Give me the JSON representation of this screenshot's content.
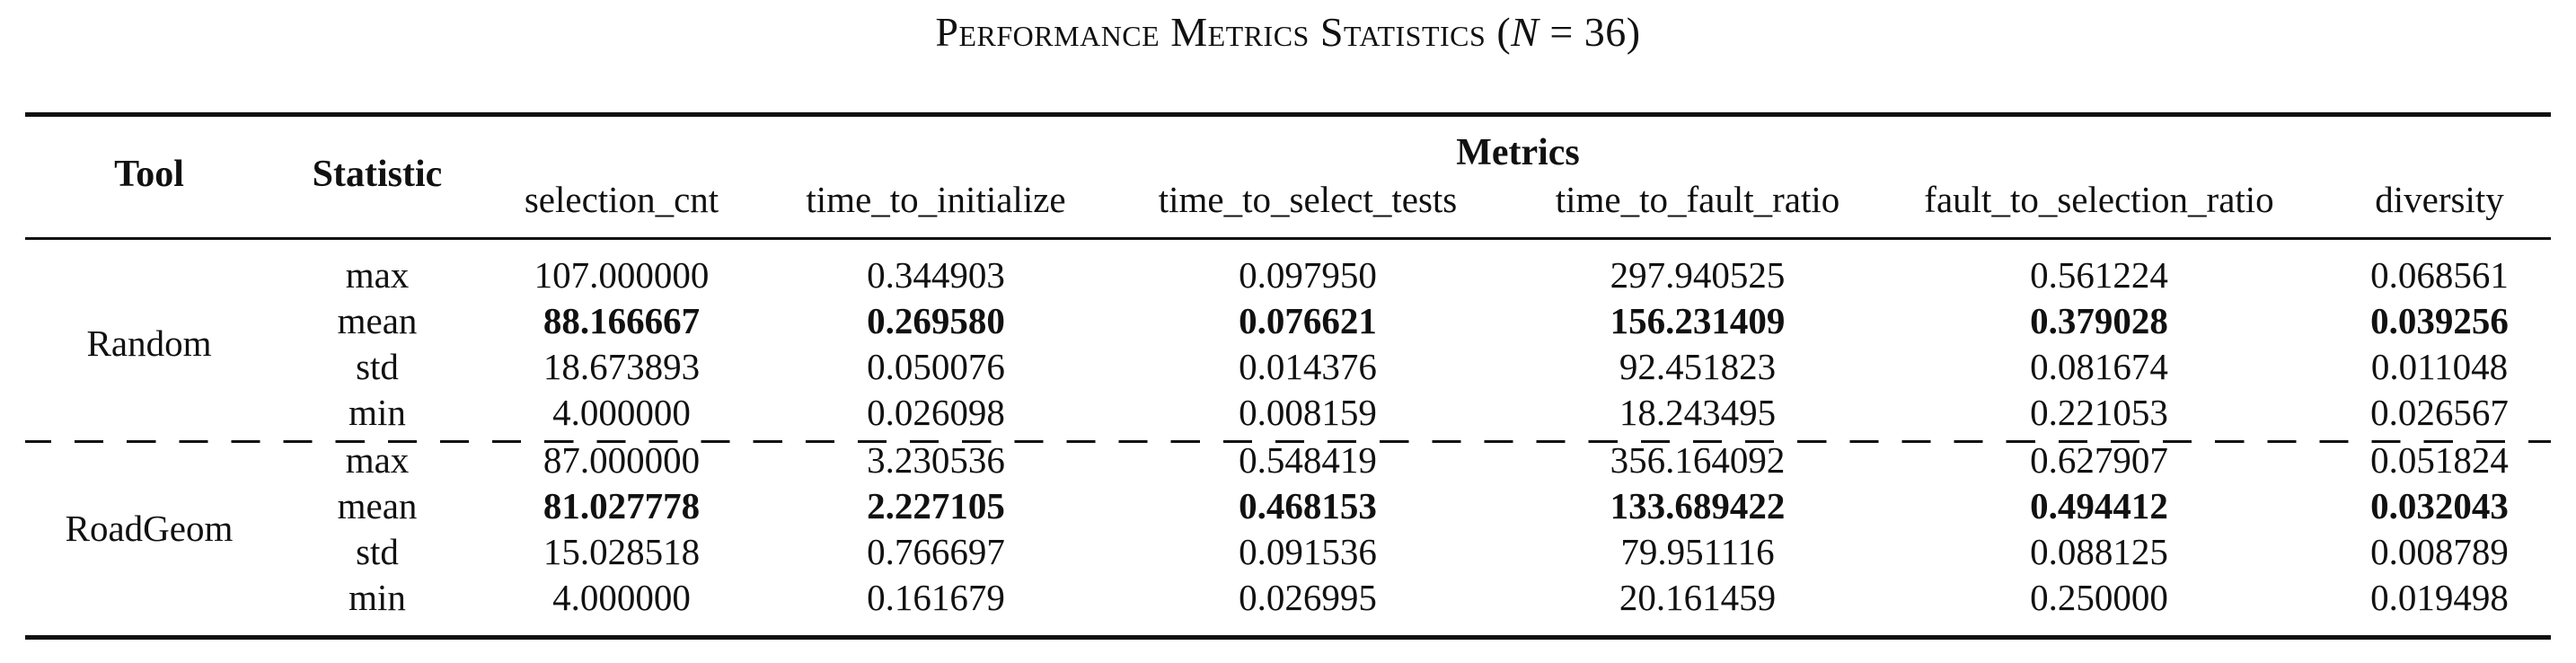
{
  "caption": {
    "text": "Performance Metrics Statistics",
    "math_open": "(",
    "math_var": "N",
    "math_rest": " = 36)"
  },
  "header": {
    "tool": "Tool",
    "statistic": "Statistic",
    "metrics_group": "Metrics",
    "columns": [
      "selection_cnt",
      "time_to_initialize",
      "time_to_select_tests",
      "time_to_fault_ratio",
      "fault_to_selection_ratio",
      "diversity"
    ]
  },
  "groups": [
    {
      "tool": "Random",
      "rows": [
        {
          "stat": "max",
          "values": [
            "107.000000",
            "0.344903",
            "0.097950",
            "297.940525",
            "0.561224",
            "0.068561"
          ]
        },
        {
          "stat": "mean",
          "values": [
            "88.166667",
            "0.269580",
            "0.076621",
            "156.231409",
            "0.379028",
            "0.039256"
          ]
        },
        {
          "stat": "std",
          "values": [
            "18.673893",
            "0.050076",
            "0.014376",
            "92.451823",
            "0.081674",
            "0.011048"
          ]
        },
        {
          "stat": "min",
          "values": [
            "4.000000",
            "0.026098",
            "0.008159",
            "18.243495",
            "0.221053",
            "0.026567"
          ]
        }
      ]
    },
    {
      "tool": "RoadGeom",
      "rows": [
        {
          "stat": "max",
          "values": [
            "87.000000",
            "3.230536",
            "0.548419",
            "356.164092",
            "0.627907",
            "0.051824"
          ]
        },
        {
          "stat": "mean",
          "values": [
            "81.027778",
            "2.227105",
            "0.468153",
            "133.689422",
            "0.494412",
            "0.032043"
          ]
        },
        {
          "stat": "std",
          "values": [
            "15.028518",
            "0.766697",
            "0.091536",
            "79.951116",
            "0.088125",
            "0.008789"
          ]
        },
        {
          "stat": "min",
          "values": [
            "4.000000",
            "0.161679",
            "0.026995",
            "20.161459",
            "0.250000",
            "0.019498"
          ]
        }
      ]
    }
  ]
}
